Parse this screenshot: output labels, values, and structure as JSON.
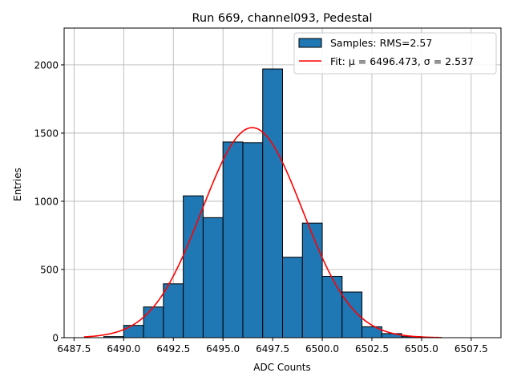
{
  "chart_data": {
    "type": "bar",
    "title": "Run 669, channel093, Pedestal",
    "xlabel": "ADC Counts",
    "ylabel": "Entries",
    "xlim": [
      6487.0,
      6509.0
    ],
    "ylim": [
      0,
      2270
    ],
    "xticks": [
      {
        "value": 6487.5,
        "label": "6487.5"
      },
      {
        "value": 6490.0,
        "label": "6490.0"
      },
      {
        "value": 6492.5,
        "label": "6492.5"
      },
      {
        "value": 6495.0,
        "label": "6495.0"
      },
      {
        "value": 6497.5,
        "label": "6497.5"
      },
      {
        "value": 6500.0,
        "label": "6500.0"
      },
      {
        "value": 6502.5,
        "label": "6502.5"
      },
      {
        "value": 6505.0,
        "label": "6505.0"
      },
      {
        "value": 6507.5,
        "label": "6507.5"
      }
    ],
    "yticks": [
      {
        "value": 0,
        "label": "0"
      },
      {
        "value": 500,
        "label": "500"
      },
      {
        "value": 1000,
        "label": "1000"
      },
      {
        "value": 1500,
        "label": "1500"
      },
      {
        "value": 2000,
        "label": "2000"
      }
    ],
    "grid": true,
    "legend_position": "top-right",
    "bins": [
      {
        "x0": 6489.0,
        "x1": 6490.0,
        "value": 8
      },
      {
        "x0": 6490.0,
        "x1": 6491.0,
        "value": 90
      },
      {
        "x0": 6491.0,
        "x1": 6492.0,
        "value": 225
      },
      {
        "x0": 6492.0,
        "x1": 6493.0,
        "value": 395
      },
      {
        "x0": 6493.0,
        "x1": 6494.0,
        "value": 1040
      },
      {
        "x0": 6494.0,
        "x1": 6495.0,
        "value": 880
      },
      {
        "x0": 6495.0,
        "x1": 6496.0,
        "value": 1435
      },
      {
        "x0": 6496.0,
        "x1": 6497.0,
        "value": 1430
      },
      {
        "x0": 6497.0,
        "x1": 6498.0,
        "value": 1970
      },
      {
        "x0": 6498.0,
        "x1": 6499.0,
        "value": 590
      },
      {
        "x0": 6499.0,
        "x1": 6500.0,
        "value": 840
      },
      {
        "x0": 6500.0,
        "x1": 6501.0,
        "value": 450
      },
      {
        "x0": 6501.0,
        "x1": 6502.0,
        "value": 335
      },
      {
        "x0": 6502.0,
        "x1": 6503.0,
        "value": 80
      },
      {
        "x0": 6503.0,
        "x1": 6504.0,
        "value": 30
      },
      {
        "x0": 6504.0,
        "x1": 6505.0,
        "value": 8
      }
    ],
    "fit": {
      "mu": 6496.473,
      "sigma": 2.537,
      "amplitude": 1540,
      "x_range": [
        6488.0,
        6506.0
      ]
    },
    "legend": [
      {
        "label": "Samples: RMS=2.57",
        "kind": "patch"
      },
      {
        "label": "Fit: μ = 6496.473, σ = 2.537",
        "kind": "line"
      }
    ],
    "colors": {
      "bar": "#1f77b4",
      "bar_edge": "#000000",
      "fit": "#ff0000",
      "grid": "#b0b0b0"
    }
  }
}
